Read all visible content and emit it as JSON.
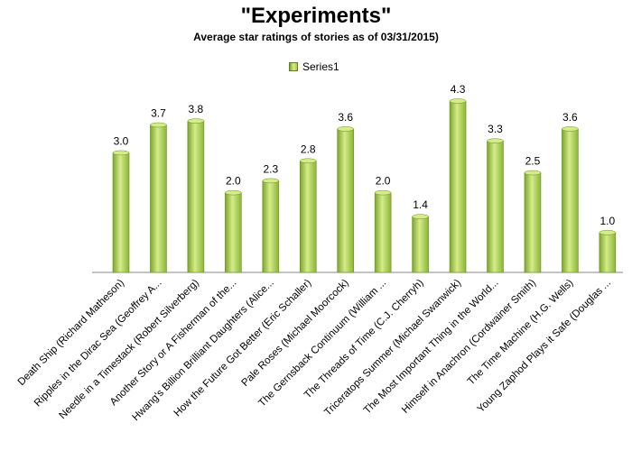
{
  "chart_data": {
    "type": "bar",
    "title": "\"Experiments\"",
    "subtitle": "Average star ratings of stories as of 03/31/2015)",
    "xlabel": "",
    "ylabel": "",
    "ylim": [
      0,
      4.3
    ],
    "legend": {
      "position": "top-center",
      "entries": [
        "Series1"
      ]
    },
    "grid": false,
    "colors": {
      "bar_light": "#d4ec8a",
      "bar_mid": "#a9cf45",
      "bar_dark": "#7da42c",
      "bar_stroke": "#6c8f23",
      "axis": "#888888"
    },
    "categories": [
      "Death Ship (Richard Matheson)",
      "Ripples in the Dirac Sea (Geoffrey A...",
      "Needle in a Timestack (Robert Silverberg)",
      "Another Story or A Fisherman of the...",
      "Hwang's Billion Brilliant Daughters (Alice...",
      "How the Future Got Better (Eric Schaller)",
      "Pale Roses (Michael Moorcock)",
      "The Gernsback Continuum (William ...",
      "The Threads of Time (C.J. Cherryh)",
      "Triceratops Summer (Michael Swanwick)",
      "The Most Important Thing in the World...",
      "Himself in Anachron (Cordwainer Smith)",
      "The Time Machine (H.G. Wells)",
      "Young Zaphod Plays it Safe (Douglas ..."
    ],
    "series": [
      {
        "name": "Series1",
        "values": [
          3.0,
          3.7,
          3.8,
          2.0,
          2.3,
          2.8,
          3.6,
          2.0,
          1.4,
          4.3,
          3.3,
          2.5,
          3.6,
          1.0
        ],
        "labels": [
          "3.0",
          "3.7",
          "3.8",
          "2.0",
          "2.3",
          "2.8",
          "3.6",
          "2.0",
          "1.4",
          "4.3",
          "3.3",
          "2.5",
          "3.6",
          "1.0"
        ]
      }
    ]
  }
}
